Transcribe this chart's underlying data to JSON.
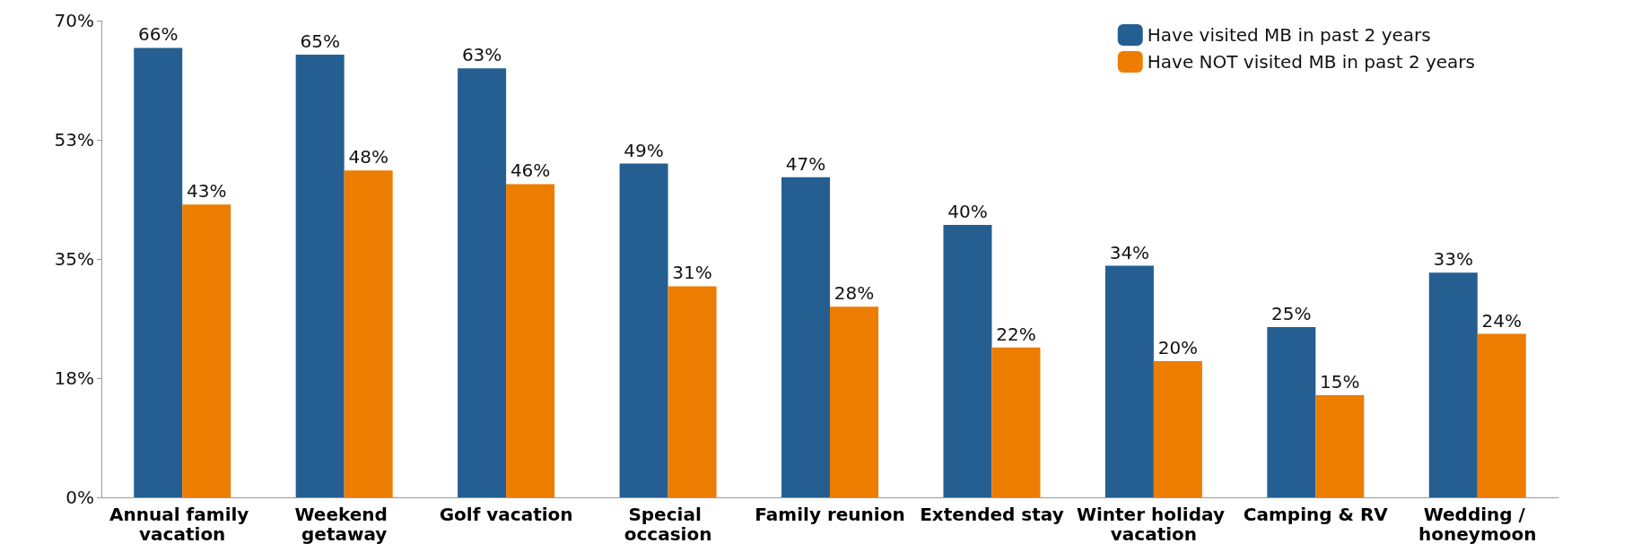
{
  "chart_data": {
    "type": "bar",
    "categories": [
      "Annual family vacation",
      "Weekend getaway",
      "Golf vacation",
      "Special occasion",
      "Family reunion",
      "Extended stay",
      "Winter holiday vacation",
      "Camping & RV",
      "Wedding / honeymoon"
    ],
    "series": [
      {
        "name": "Have visited MB in past 2 years",
        "color": "#255e91",
        "values": [
          66,
          65,
          63,
          49,
          47,
          40,
          34,
          25,
          33
        ],
        "value_labels": [
          "66%",
          "65%",
          "63%",
          "49%",
          "47%",
          "40%",
          "34%",
          "25%",
          "33%"
        ]
      },
      {
        "name": "Have NOT visited MB in past 2 years",
        "color": "#ed7d00",
        "values": [
          43,
          48,
          46,
          31,
          28,
          22,
          20,
          15,
          24
        ],
        "value_labels": [
          "43%",
          "48%",
          "46%",
          "31%",
          "28%",
          "22%",
          "20%",
          "15%",
          "24%"
        ]
      }
    ],
    "ylim": [
      0,
      70
    ],
    "yticks": [
      {
        "value": 0,
        "label": "0%"
      },
      {
        "value": 17.5,
        "label": "18%"
      },
      {
        "value": 35,
        "label": "35%"
      },
      {
        "value": 52.5,
        "label": "53%"
      },
      {
        "value": 70,
        "label": "70%"
      }
    ],
    "grid": false,
    "legend": "top right"
  }
}
